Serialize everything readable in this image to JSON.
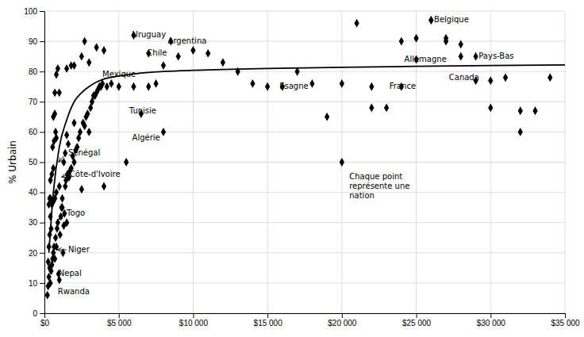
{
  "chart_data": {
    "type": "scatter",
    "ylabel": "% Urbain",
    "xlim": [
      0,
      35000
    ],
    "ylim": [
      0,
      100
    ],
    "xticks": [
      {
        "value": 0,
        "label": "$0"
      },
      {
        "value": 5000,
        "label": "$5 000"
      },
      {
        "value": 10000,
        "label": "$10 000"
      },
      {
        "value": 15000,
        "label": "$15 000"
      },
      {
        "value": 20000,
        "label": "$20 000"
      },
      {
        "value": 25000,
        "label": "$25 000"
      },
      {
        "value": 30000,
        "label": "$30 000"
      },
      {
        "value": 35000,
        "label": "$35 000"
      }
    ],
    "yticks": [
      0,
      10,
      20,
      30,
      40,
      50,
      60,
      70,
      80,
      90,
      100
    ],
    "grid": true,
    "series": [
      {
        "type": "scatter",
        "color": "#000000",
        "marker": "diamond",
        "x": [
          200,
          250,
          300,
          350,
          400,
          450,
          500,
          550,
          600,
          650,
          700,
          750,
          800,
          850,
          900,
          950,
          1000,
          1050,
          1100,
          1150,
          1200,
          1250,
          1300,
          1350,
          1400,
          1450,
          1500,
          1550,
          1600,
          1650,
          1700,
          1800,
          1900,
          2000,
          2100,
          2200,
          2300,
          2400,
          2500,
          2600,
          2700,
          2800,
          2900,
          3000,
          3100,
          3200,
          3300,
          3400,
          3500,
          3600,
          3700,
          3800,
          3900,
          4000,
          4200,
          4500,
          5000,
          5500,
          6000,
          6500,
          7000,
          7500,
          8000,
          8000,
          9000,
          10000,
          11000,
          12000,
          13000,
          14000,
          15000,
          16000,
          17000,
          18000,
          19000,
          20000,
          21000,
          22000,
          23000,
          24000,
          25000,
          26000,
          27000,
          28000,
          29000,
          30000,
          31000,
          32000,
          33000,
          34000,
          400,
          500,
          600,
          700,
          700,
          800,
          800,
          1000,
          1200,
          1500,
          2000,
          1800,
          2500,
          2700,
          3500,
          4000,
          1000,
          1500,
          2000,
          3000,
          600,
          700,
          800,
          900,
          500,
          600,
          400,
          300,
          350,
          400,
          450,
          550,
          650,
          750,
          1300,
          1400,
          250,
          300,
          350,
          6000,
          7000,
          8500,
          25000,
          26000,
          27000,
          28000,
          29000,
          30000,
          32000,
          24000,
          22000,
          20000
        ],
        "values": [
          6,
          9,
          12,
          15,
          10,
          14,
          16,
          18,
          20,
          22,
          18,
          25,
          22,
          28,
          30,
          13,
          11,
          26,
          32,
          35,
          38,
          20,
          29,
          33,
          42,
          44,
          30,
          46,
          56,
          45,
          47,
          48,
          52,
          50,
          54,
          55,
          58,
          60,
          41,
          63,
          62,
          65,
          66,
          60,
          68,
          70,
          72,
          72,
          73,
          74,
          75,
          75,
          76,
          42,
          75,
          76,
          75,
          50,
          75,
          66,
          75,
          76,
          82,
          60,
          85,
          87,
          86,
          83,
          80,
          76,
          75,
          75,
          80,
          76,
          65,
          76,
          96,
          75,
          68,
          90,
          91,
          97,
          90,
          85,
          77,
          68,
          78,
          60,
          67,
          78,
          38,
          36,
          37,
          38,
          66,
          58,
          40,
          42,
          35,
          59,
          63,
          82,
          85,
          90,
          88,
          87,
          73,
          81,
          82,
          83,
          65,
          73,
          79,
          81,
          46,
          48,
          44,
          36,
          38,
          32,
          28,
          55,
          57,
          60,
          50,
          53,
          17,
          22,
          26,
          92,
          86,
          90,
          84,
          97,
          91,
          89,
          85,
          77,
          67,
          75,
          68,
          50
        ]
      },
      {
        "type": "line",
        "color": "#000000",
        "x": [
          300,
          600,
          1000,
          1500,
          2000,
          2500,
          3000,
          3500,
          4000,
          5000,
          6000,
          7000,
          8000,
          10000,
          12000,
          15000,
          20000,
          25000,
          30000,
          35000
        ],
        "values": [
          20,
          40,
          55,
          64,
          70,
          73,
          75,
          76.5,
          77.5,
          78.5,
          79.2,
          79.7,
          80,
          80.4,
          80.7,
          81,
          81.4,
          81.7,
          82,
          82.2
        ]
      }
    ],
    "annotations": [
      {
        "text": "Uruguay",
        "x": 5900,
        "y": 92
      },
      {
        "text": "Argentina",
        "x": 8300,
        "y": 90
      },
      {
        "text": "Chile",
        "x": 6900,
        "y": 86
      },
      {
        "text": "Mexique",
        "x": 3900,
        "y": 79
      },
      {
        "text": "Tunisie",
        "x": 5700,
        "y": 67
      },
      {
        "text": "Algérie",
        "x": 5900,
        "y": 58
      },
      {
        "text": "Sénégal",
        "x": 1600,
        "y": 53,
        "arrow": [
          950,
          50
        ]
      },
      {
        "text": "Côte-d'Ivoire",
        "x": 1700,
        "y": 46,
        "arrow": [
          1150,
          45
        ]
      },
      {
        "text": "Togo",
        "x": 1500,
        "y": 33,
        "arrow": [
          950,
          31
        ]
      },
      {
        "text": "Niger",
        "x": 1600,
        "y": 21,
        "arrow": [
          850,
          21
        ]
      },
      {
        "text": "Nepal",
        "x": 950,
        "y": 13
      },
      {
        "text": "Rwanda",
        "x": 900,
        "y": 7
      },
      {
        "text": "Belgique",
        "x": 26200,
        "y": 97
      },
      {
        "text": "Pays-Bas",
        "x": 29200,
        "y": 85
      },
      {
        "text": "Allemagne",
        "x": 24200,
        "y": 84
      },
      {
        "text": "Canada",
        "x": 27200,
        "y": 78
      },
      {
        "text": "France",
        "x": 23200,
        "y": 75
      },
      {
        "text": "Esagne",
        "x": 15800,
        "y": 75
      },
      {
        "text": "Chaque point\nreprésente une\nnation",
        "x": 20500,
        "y": 42
      }
    ]
  }
}
